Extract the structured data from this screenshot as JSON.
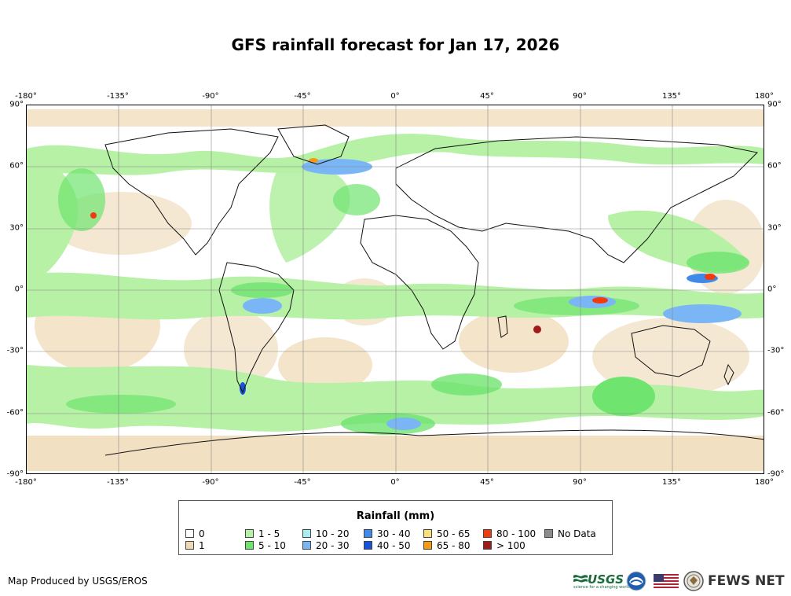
{
  "title": "GFS rainfall forecast for Jan 17, 2026",
  "axes": {
    "lon_labels": [
      "-180°",
      "-135°",
      "-90°",
      "-45°",
      "0°",
      "45°",
      "90°",
      "135°",
      "180°"
    ],
    "lat_labels": [
      "90°",
      "60°",
      "30°",
      "0°",
      "-30°",
      "-60°",
      "-90°"
    ]
  },
  "legend": {
    "title": "Rainfall (mm)",
    "items": [
      {
        "label": "0",
        "color": "#ffffff"
      },
      {
        "label": "1",
        "color": "#efd8b4"
      },
      {
        "label": "1 - 5",
        "color": "#b6f1a5"
      },
      {
        "label": "5 - 10",
        "color": "#6fe46f"
      },
      {
        "label": "10 - 20",
        "color": "#a8eef0"
      },
      {
        "label": "20 - 30",
        "color": "#7ab6f5"
      },
      {
        "label": "30 - 40",
        "color": "#3f8ae8"
      },
      {
        "label": "40 - 50",
        "color": "#1654d8"
      },
      {
        "label": "50 - 65",
        "color": "#f8e07a"
      },
      {
        "label": "65 - 80",
        "color": "#f59a12"
      },
      {
        "label": "80 - 100",
        "color": "#f03a10"
      },
      {
        "label": "> 100",
        "color": "#a01a1a"
      },
      {
        "label": "No Data",
        "color": "#8c8c8c"
      }
    ]
  },
  "footer": {
    "credit": "Map Produced by USGS/EROS",
    "usgs_logo": "USGS",
    "usgs_tagline": "science for a changing world",
    "fews_logo": "FEWS NET"
  }
}
